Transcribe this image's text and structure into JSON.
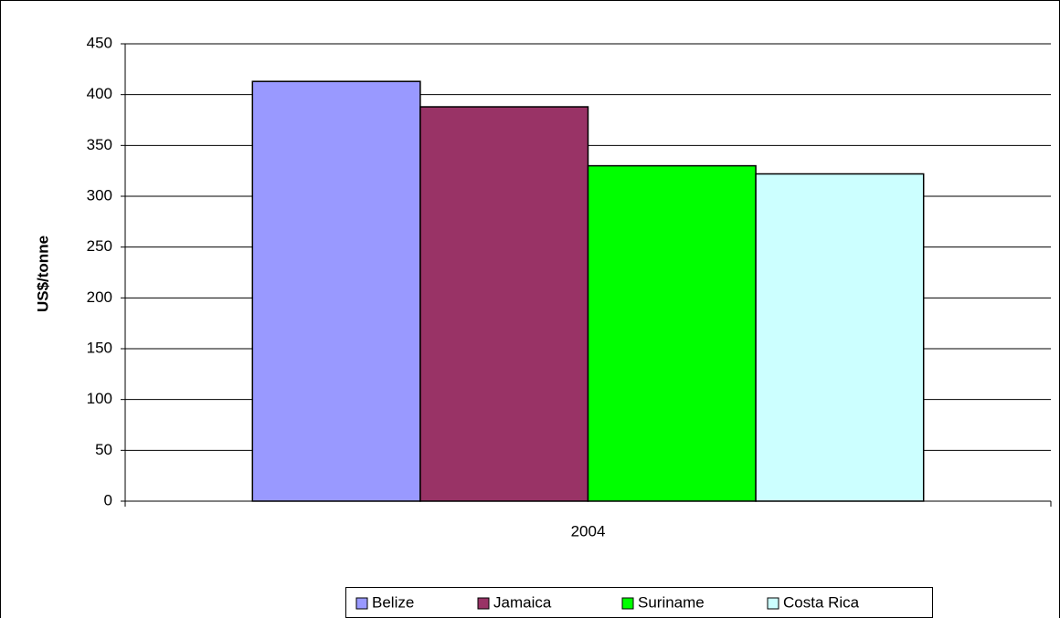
{
  "chart_data": {
    "type": "bar",
    "y_label": "US$/tonne",
    "categories": [
      "2004"
    ],
    "series": [
      {
        "name": "Belize",
        "color": "#9999ff",
        "values": [
          413
        ]
      },
      {
        "name": "Jamaica",
        "color": "#993366",
        "values": [
          388
        ]
      },
      {
        "name": "Suriname",
        "color": "#00ff00",
        "values": [
          330
        ]
      },
      {
        "name": "Costa Rica",
        "color": "#ccffff",
        "values": [
          322
        ]
      }
    ],
    "ylim": [
      0,
      450
    ],
    "yticks": [
      0,
      50,
      100,
      150,
      200,
      250,
      300,
      350,
      400,
      450
    ],
    "grid": true,
    "legend": "bottom"
  }
}
